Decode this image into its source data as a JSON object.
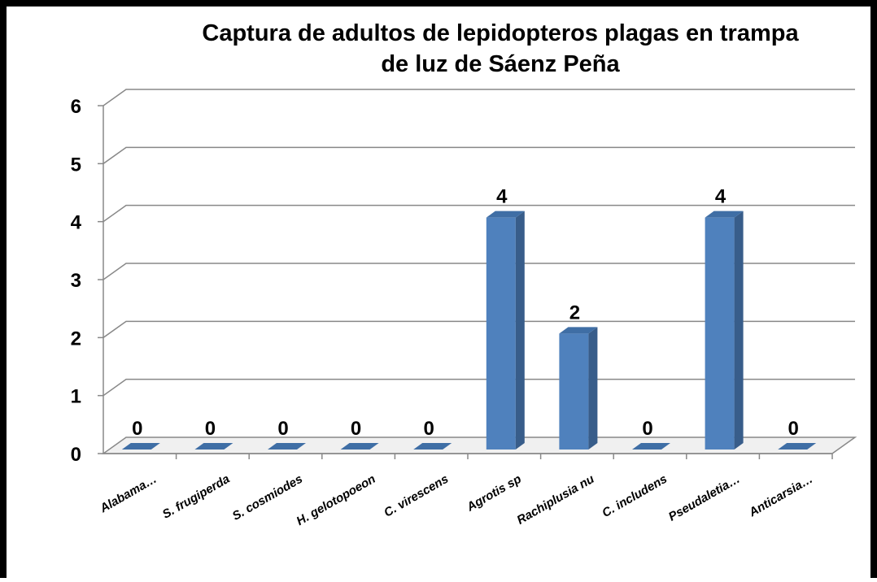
{
  "chart_data": {
    "type": "bar3d",
    "title": "Captura de adultos de lepidopteros plagas en trampa de luz de Sáenz Peña",
    "categories": [
      "Alabama…",
      "S.  frugiperda",
      "S.  cosmiodes",
      "H. gelotopoeon",
      "C. virescens",
      "Agrotis sp",
      "Rachiplusia nu",
      "C. includens",
      "Pseudaletia…",
      "Anticarsia…"
    ],
    "values": [
      0,
      0,
      0,
      0,
      0,
      4,
      2,
      0,
      4,
      0
    ],
    "color": "#4f81bd",
    "ylim": [
      0,
      6
    ],
    "yticks": [
      0,
      1,
      2,
      3,
      4,
      5,
      6
    ],
    "grid": true
  }
}
